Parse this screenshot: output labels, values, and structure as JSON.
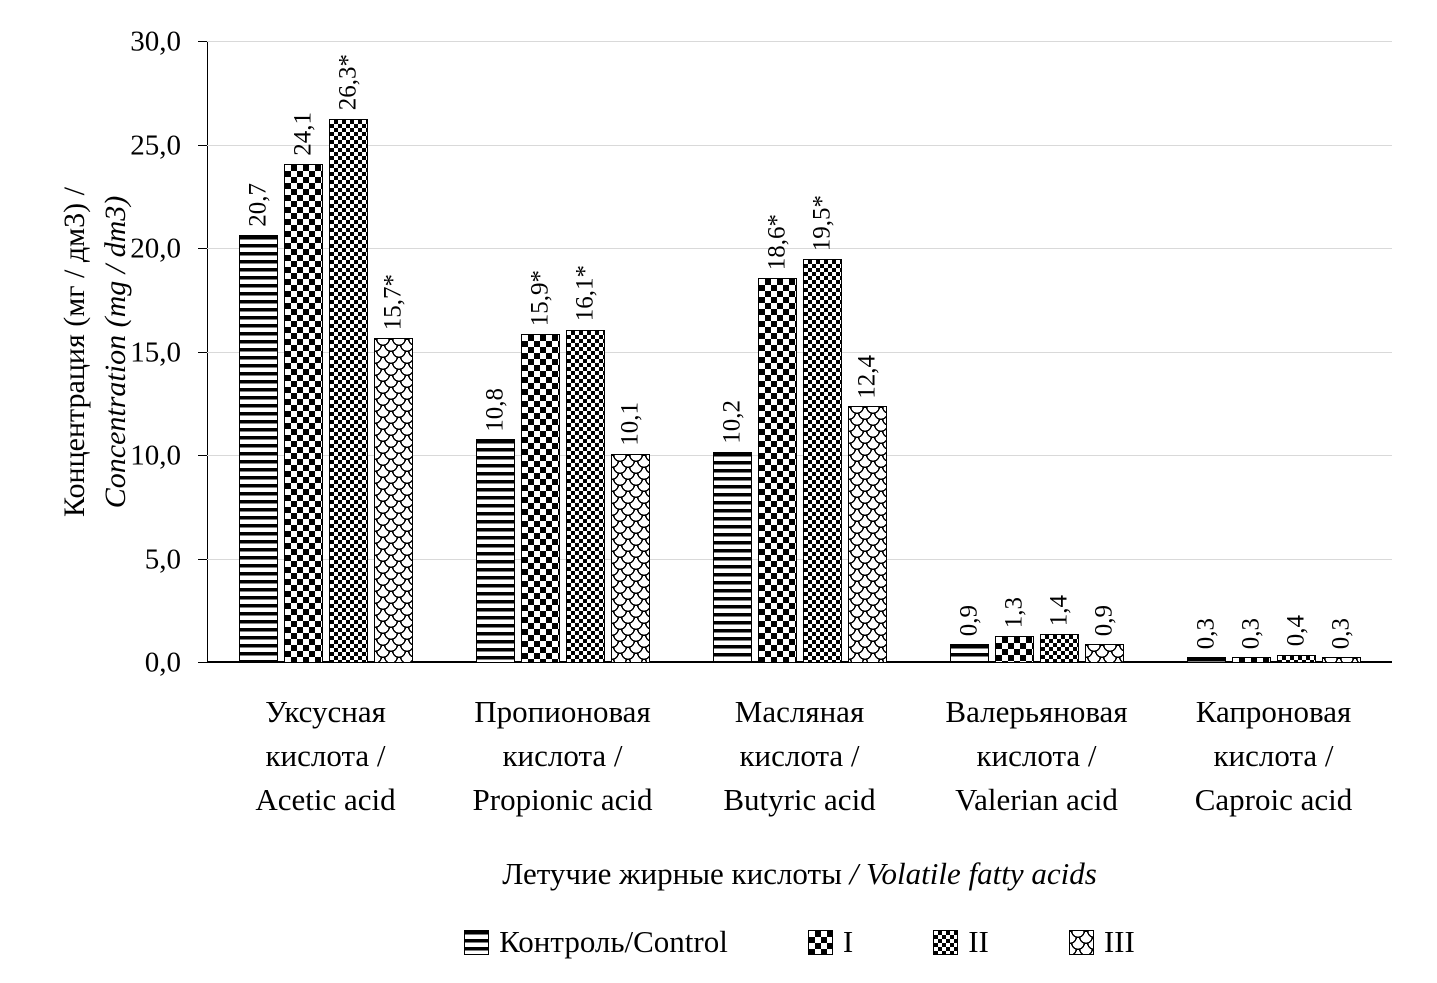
{
  "chart_data": {
    "type": "bar",
    "title": "",
    "ylabel_lines": [
      "Концентрация (мг / дм3) /",
      "Concentration (mg / dm3)"
    ],
    "xlabel_parts": [
      "Летучие жирные кислоты ",
      "/ Volatile fatty acids"
    ],
    "ylim": [
      0,
      30
    ],
    "grid": true,
    "legend_position": "bottom",
    "yticks": [
      "0,0",
      "5,0",
      "10,0",
      "15,0",
      "20,0",
      "25,0",
      "30,0"
    ],
    "categories": [
      {
        "lines": [
          "Уксусная",
          "кислота /",
          "Acetic acid"
        ]
      },
      {
        "lines": [
          "Пропионовая",
          "кислота /",
          "Propionic acid"
        ]
      },
      {
        "lines": [
          "Масляная",
          "кислота /",
          "Butyric acid"
        ]
      },
      {
        "lines": [
          "Валерьяновая",
          "кислота /",
          "Valerian  acid"
        ]
      },
      {
        "lines": [
          "Капроновая",
          "кислота /",
          "Caproic acid"
        ]
      }
    ],
    "series": [
      {
        "name": "Контроль/Control",
        "pattern": "horizontal-stripes",
        "values": [
          20.7,
          10.8,
          10.2,
          0.9,
          0.3
        ],
        "labels": [
          "20,7",
          "10,8",
          "10,2",
          "0,9",
          "0,3"
        ]
      },
      {
        "name": "I",
        "pattern": "checkerboard",
        "values": [
          24.1,
          15.9,
          18.6,
          1.3,
          0.3
        ],
        "labels": [
          "24,1",
          "15,9*",
          "18,6*",
          "1,3",
          "0,3"
        ]
      },
      {
        "name": "II",
        "pattern": "dense-checkerboard",
        "values": [
          26.3,
          16.1,
          19.5,
          1.4,
          0.4
        ],
        "labels": [
          "26,3*",
          "16,1*",
          "19,5*",
          "1,4",
          "0,4"
        ]
      },
      {
        "name": "III",
        "pattern": "fish-scale",
        "values": [
          15.7,
          10.1,
          12.4,
          0.9,
          0.3
        ],
        "labels": [
          "15,7*",
          "10,1",
          "12,4",
          "0,9",
          "0,3"
        ]
      }
    ]
  }
}
